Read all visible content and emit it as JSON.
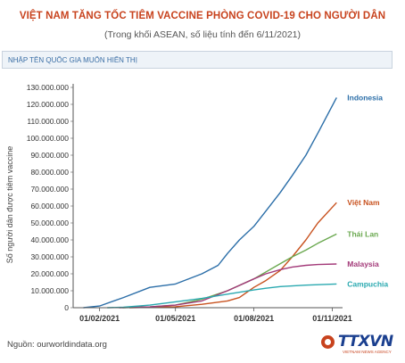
{
  "header": {
    "title": "VIỆT NAM TĂNG TỐC TIÊM VACCINE PHÒNG COVID-19 CHO NGƯỜI DÂN",
    "subtitle": "(Trong khối ASEAN, số liệu tính đến 6/11/2021)"
  },
  "search": {
    "placeholder": "NHẬP TÊN QUỐC GIA MUỐN HIỂN THỊ"
  },
  "footer": {
    "source": "Nguồn: ourworldindata.org",
    "logo_text": "TTXVN",
    "logo_sub": "VIETNAM NEWS AGENCY"
  },
  "colors": {
    "title": "#c8431e",
    "axis": "#444444",
    "grid": "#e8e8e8"
  },
  "chart_data": {
    "type": "line",
    "title": "VIỆT NAM TĂNG TỐC TIÊM VACCINE PHÒNG COVID-19 CHO NGƯỜI DÂN",
    "ylabel": "Số người dân được tiêm vaccine",
    "xlabel": "",
    "ylim": [
      0,
      130000000
    ],
    "xlim": [
      "2021-01-01",
      "2021-11-13"
    ],
    "grid": false,
    "legend": "end-of-line labels",
    "yticks": [
      0,
      10000000,
      20000000,
      30000000,
      40000000,
      50000000,
      60000000,
      70000000,
      80000000,
      90000000,
      100000000,
      110000000,
      120000000,
      130000000
    ],
    "ytick_labels": [
      "0",
      "10.000.000",
      "20.000.000",
      "30.000.000",
      "40.000.000",
      "50.000.000",
      "60.000.000",
      "70.000.000",
      "80.000.000",
      "90.000.000",
      "100.000.000",
      "110.000.000",
      "120.000.000",
      "130.000.000"
    ],
    "xticks": [
      {
        "date": "2021-02-01",
        "label": "01/02/2021"
      },
      {
        "date": "2021-05-01",
        "label": "01/05/2021"
      },
      {
        "date": "2021-08-01",
        "label": "01/08/2021"
      },
      {
        "date": "2021-11-01",
        "label": "01/11/2021"
      }
    ],
    "series": [
      {
        "name": "Indonesia",
        "color": "#2b6ea8",
        "x": [
          "2021-01-13",
          "2021-02-01",
          "2021-03-01",
          "2021-04-01",
          "2021-05-01",
          "2021-06-01",
          "2021-06-20",
          "2021-07-01",
          "2021-07-15",
          "2021-08-01",
          "2021-08-15",
          "2021-09-01",
          "2021-09-15",
          "2021-10-01",
          "2021-10-15",
          "2021-11-06"
        ],
        "y": [
          0,
          1000000,
          6000000,
          12000000,
          14000000,
          20000000,
          25000000,
          32000000,
          40000000,
          48000000,
          57000000,
          68000000,
          78000000,
          90000000,
          103000000,
          124000000
        ]
      },
      {
        "name": "Việt Nam",
        "color": "#c8521f",
        "x": [
          "2021-03-08",
          "2021-05-01",
          "2021-06-01",
          "2021-07-01",
          "2021-07-15",
          "2021-08-01",
          "2021-08-15",
          "2021-09-01",
          "2021-09-15",
          "2021-10-01",
          "2021-10-15",
          "2021-11-06"
        ],
        "y": [
          0,
          600000,
          2000000,
          4000000,
          6000000,
          12000000,
          16000000,
          22000000,
          30000000,
          40000000,
          50000000,
          62000000
        ]
      },
      {
        "name": "Thái Lan",
        "color": "#6aa84f",
        "x": [
          "2021-02-28",
          "2021-04-01",
          "2021-05-01",
          "2021-06-01",
          "2021-07-01",
          "2021-08-01",
          "2021-09-01",
          "2021-09-15",
          "2021-10-01",
          "2021-10-15",
          "2021-11-06"
        ],
        "y": [
          0,
          500000,
          1500000,
          5000000,
          10000000,
          17000000,
          26000000,
          30000000,
          34000000,
          38000000,
          43500000
        ]
      },
      {
        "name": "Malaysia",
        "color": "#a33a79",
        "x": [
          "2021-02-24",
          "2021-04-01",
          "2021-05-01",
          "2021-06-01",
          "2021-07-01",
          "2021-08-01",
          "2021-08-15",
          "2021-09-01",
          "2021-09-15",
          "2021-10-01",
          "2021-10-15",
          "2021-11-06"
        ],
        "y": [
          0,
          500000,
          1500000,
          4000000,
          10000000,
          17000000,
          20000000,
          22500000,
          24000000,
          25000000,
          25500000,
          25800000
        ]
      },
      {
        "name": "Campuchia",
        "color": "#2aa9b0",
        "x": [
          "2021-02-10",
          "2021-03-01",
          "2021-04-01",
          "2021-05-01",
          "2021-06-01",
          "2021-07-01",
          "2021-08-01",
          "2021-08-15",
          "2021-09-01",
          "2021-10-01",
          "2021-11-06"
        ],
        "y": [
          0,
          300000,
          1500000,
          3500000,
          5500000,
          8000000,
          10500000,
          11500000,
          12500000,
          13300000,
          14000000
        ]
      }
    ]
  }
}
